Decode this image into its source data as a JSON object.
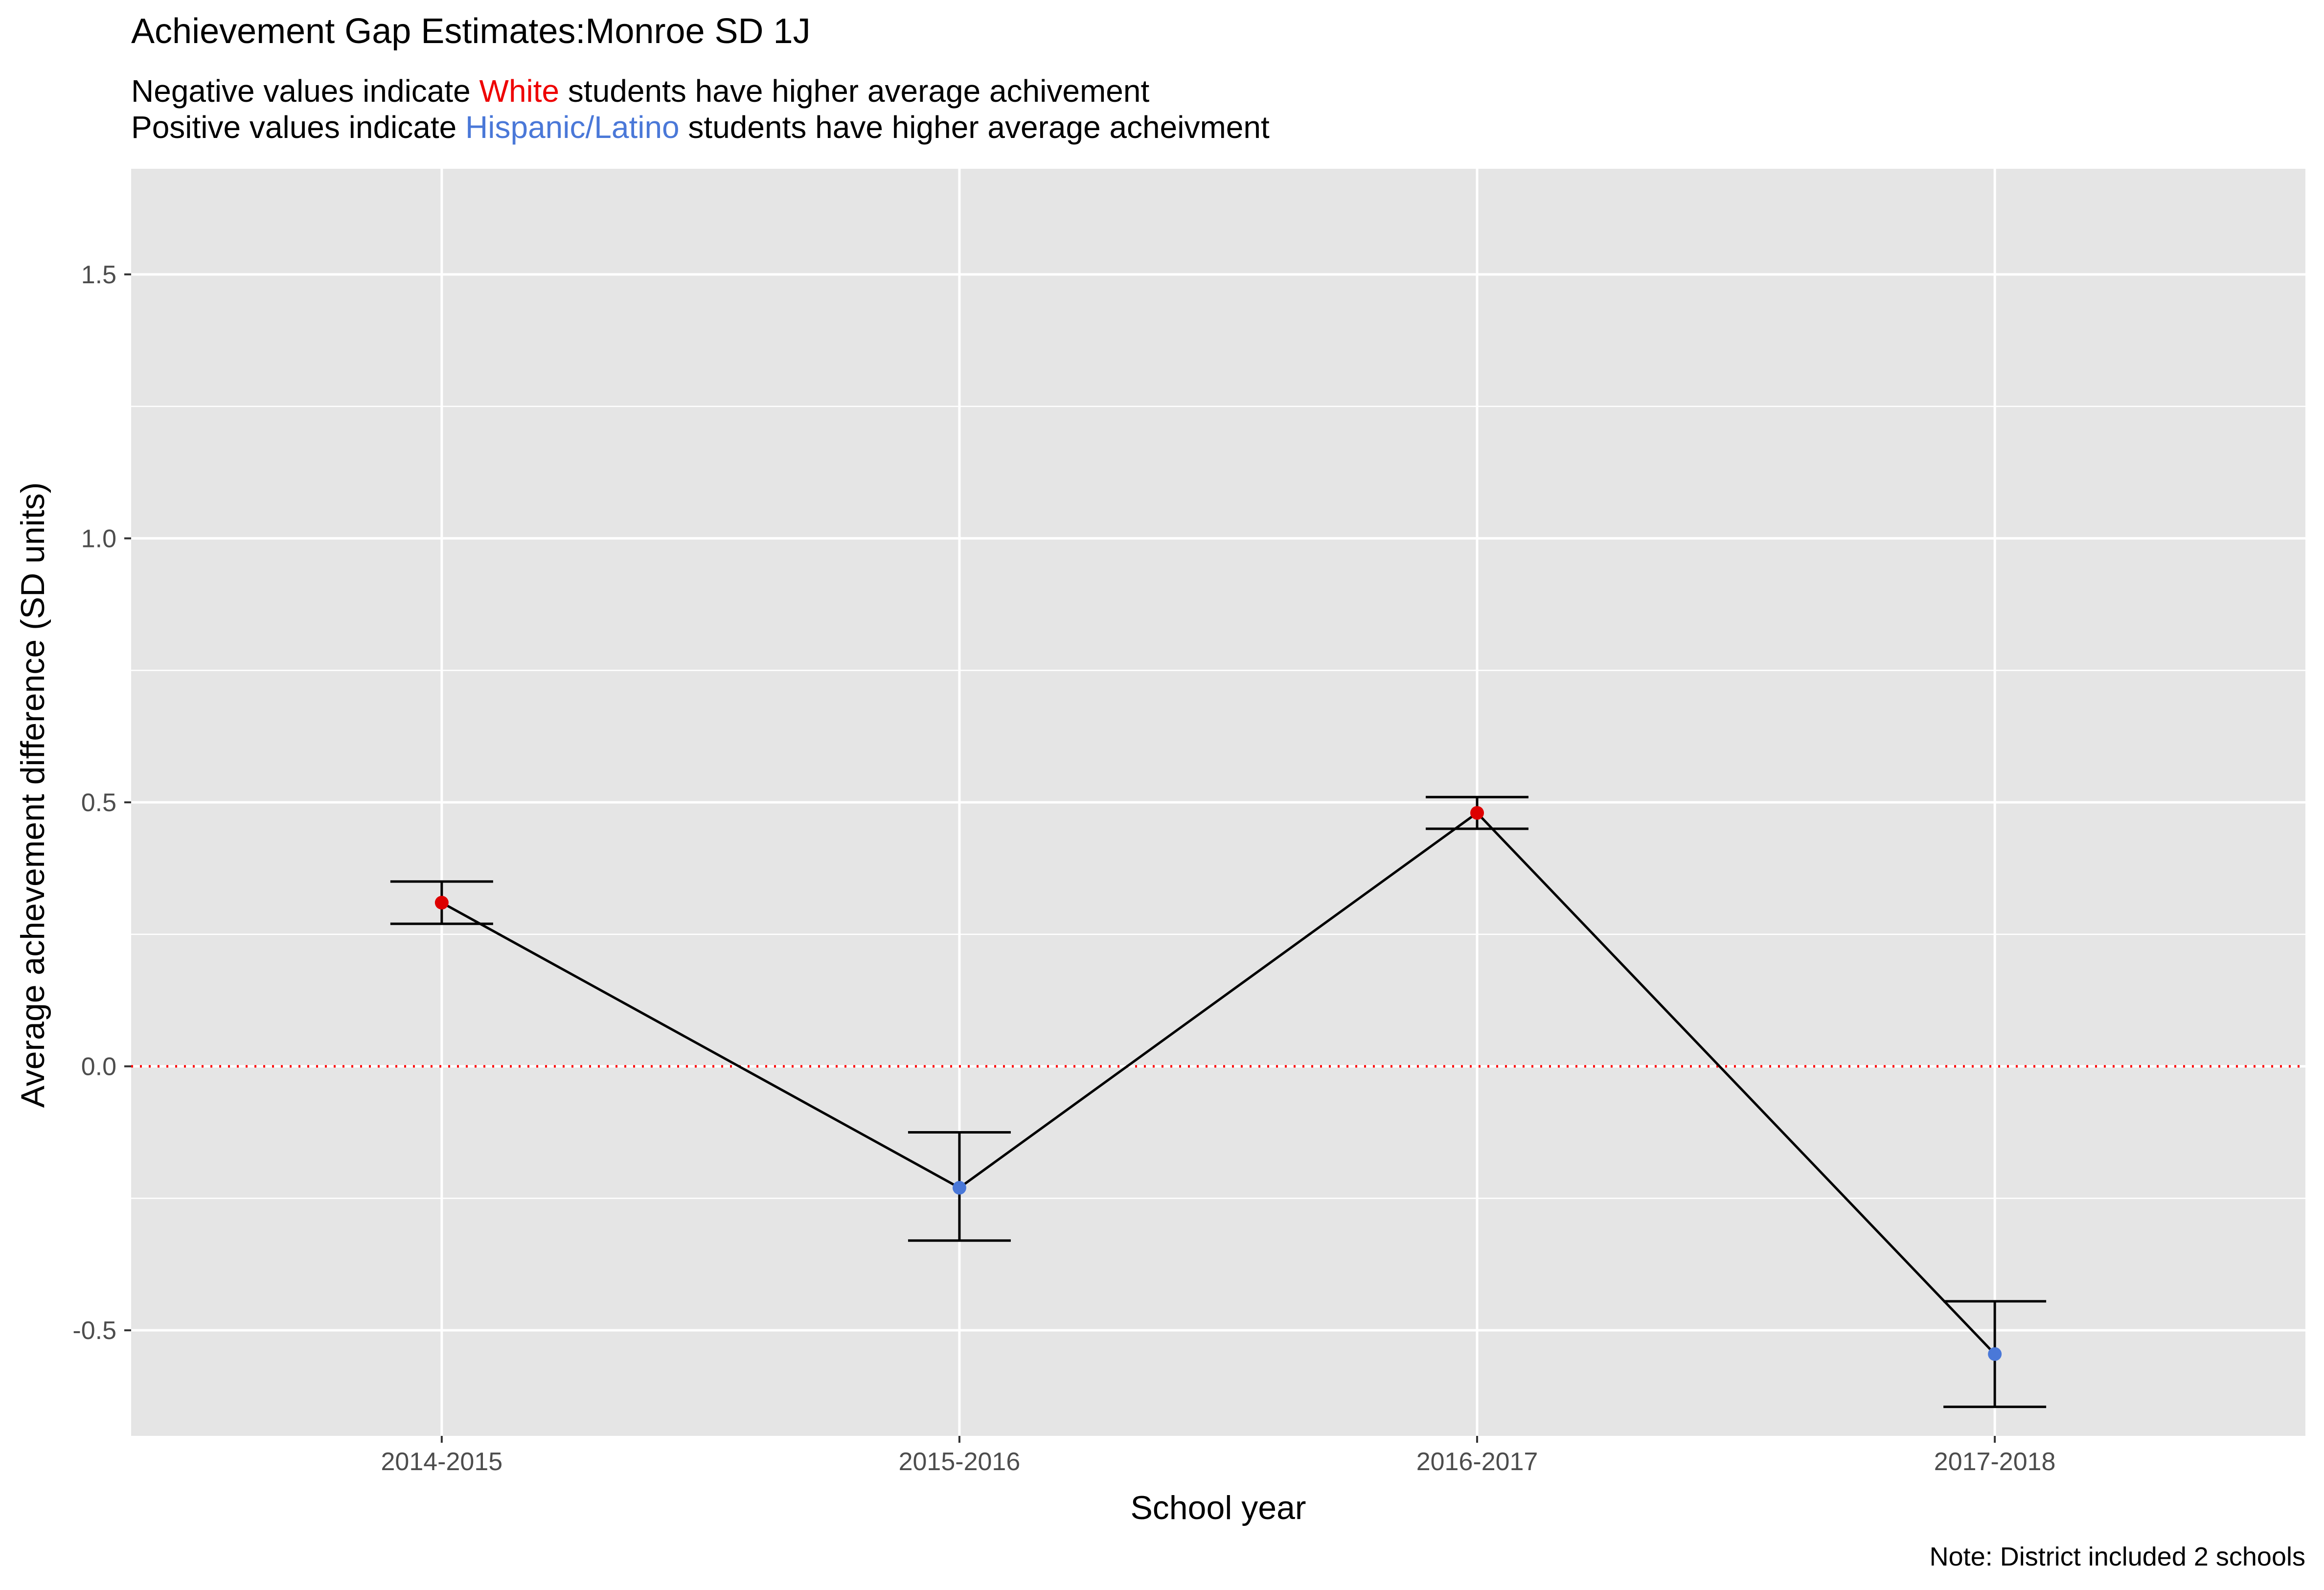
{
  "chart_data": {
    "type": "line",
    "title": "Achievement Gap Estimates:Monroe SD 1J",
    "subtitle_lines": [
      {
        "parts": [
          {
            "text": "Negative values indicate ",
            "color": "#000000"
          },
          {
            "text": "White",
            "color": "#ee0000"
          },
          {
            "text": " students have higher average achivement",
            "color": "#000000"
          }
        ]
      },
      {
        "parts": [
          {
            "text": "Positive values indicate ",
            "color": "#000000"
          },
          {
            "text": "Hispanic/Latino",
            "color": "#4a78d8"
          },
          {
            "text": " students have higher average acheivment",
            "color": "#000000"
          }
        ]
      }
    ],
    "xlabel": "School year",
    "ylabel": "Average achevement difference (SD units)",
    "caption": "Note: District included 2 schools",
    "categories": [
      "2014-2015",
      "2015-2016",
      "2016-2017",
      "2017-2018"
    ],
    "ylim": [
      -0.7,
      1.7
    ],
    "yticks": [
      -0.5,
      0.0,
      0.5,
      1.0,
      1.5
    ],
    "ytick_labels": [
      "-0.5",
      "0.0",
      "0.5",
      "1.0",
      "1.5"
    ],
    "reference_line": {
      "y": 0.0,
      "color": "#ff0000",
      "style": "dotted"
    },
    "series": [
      {
        "values": [
          0.31,
          -0.23,
          0.48,
          -0.545
        ],
        "lower": [
          0.27,
          -0.33,
          0.45,
          -0.645
        ],
        "upper": [
          0.35,
          -0.125,
          0.51,
          -0.445
        ],
        "point_colors": [
          "#dd0000",
          "#4a78d8",
          "#dd0000",
          "#4a78d8"
        ]
      }
    ],
    "grid": true,
    "panel_color": "#e5e5e5",
    "legend": "none"
  }
}
